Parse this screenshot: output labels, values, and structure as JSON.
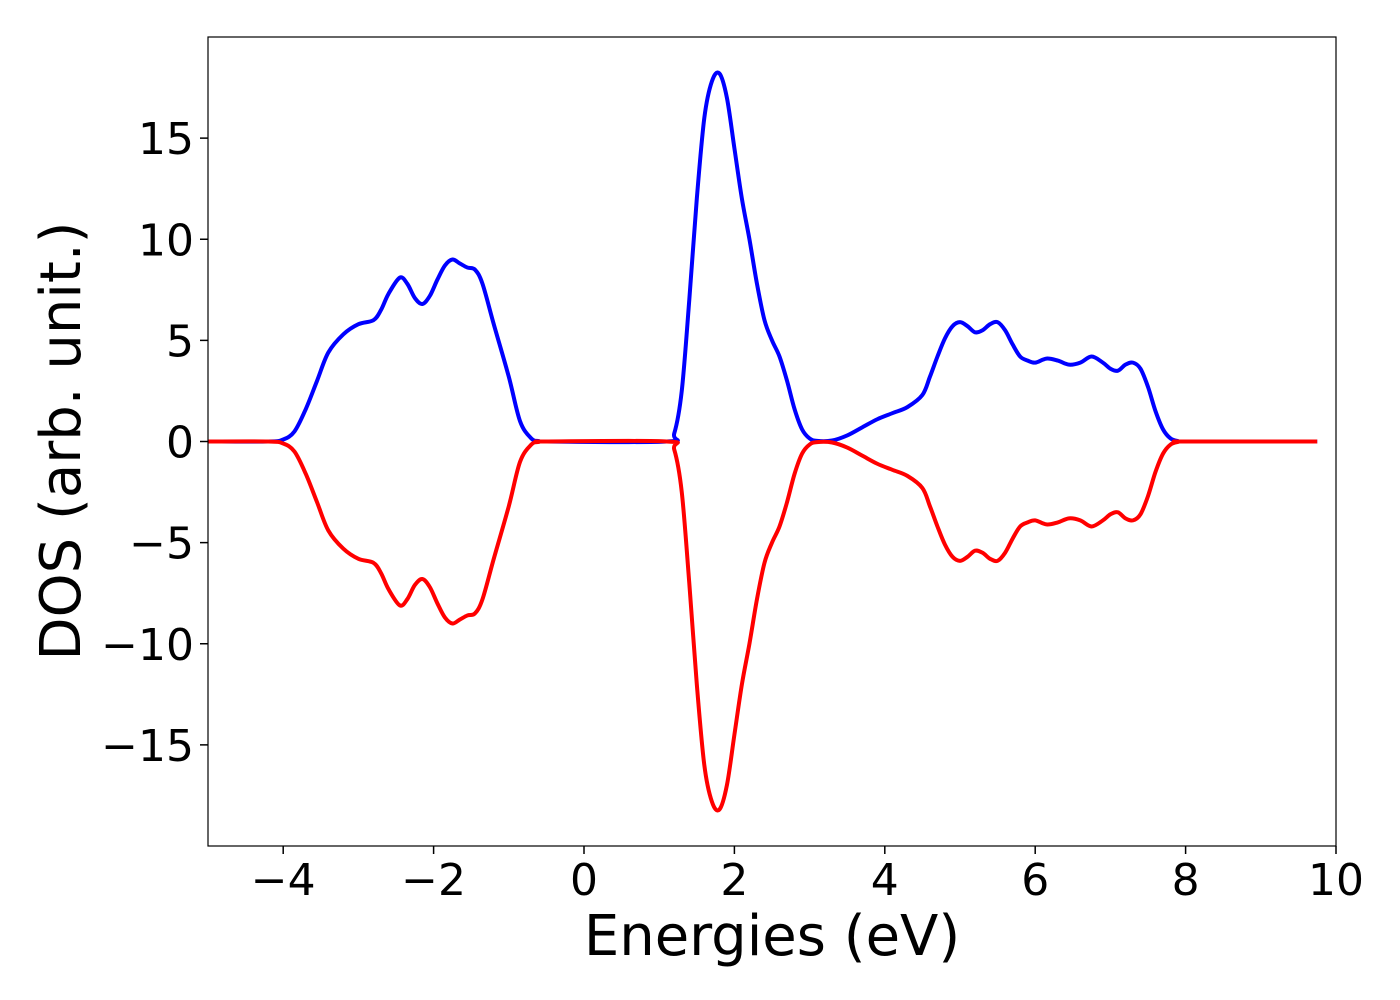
{
  "chart_data": {
    "type": "line",
    "title": "",
    "xlabel": "Energies (eV)",
    "ylabel": "DOS (arb. unit.)",
    "xlim": [
      -5,
      10
    ],
    "ylim": [
      -20,
      20
    ],
    "xticks": [
      -4,
      -2,
      0,
      2,
      4,
      6,
      8,
      10
    ],
    "xtick_labels": [
      "−4",
      "−2",
      "0",
      "2",
      "4",
      "6",
      "8",
      "10"
    ],
    "yticks": [
      -15,
      -10,
      -5,
      0,
      5,
      10,
      15
    ],
    "ytick_labels": [
      "−15",
      "−10",
      "−5",
      "0",
      "5",
      "10",
      "15"
    ],
    "grid": false,
    "legend": "none",
    "series": [
      {
        "color": "#0000ff",
        "x": [
          -5,
          -4.2,
          -4.0,
          -3.85,
          -3.7,
          -3.55,
          -3.4,
          -3.2,
          -3.0,
          -2.8,
          -2.7,
          -2.6,
          -2.45,
          -2.35,
          -2.25,
          -2.15,
          -2.05,
          -1.95,
          -1.85,
          -1.75,
          -1.65,
          -1.55,
          -1.45,
          -1.35,
          -1.2,
          -1.0,
          -0.85,
          -0.7,
          -0.6,
          -0.5,
          1.1,
          1.2,
          1.3,
          1.4,
          1.5,
          1.6,
          1.7,
          1.8,
          1.9,
          2.0,
          2.1,
          2.2,
          2.3,
          2.4,
          2.5,
          2.6,
          2.7,
          2.8,
          2.9,
          3.0,
          3.1,
          3.3,
          3.5,
          3.7,
          3.9,
          4.1,
          4.3,
          4.5,
          4.6,
          4.7,
          4.8,
          4.9,
          5.0,
          5.1,
          5.2,
          5.3,
          5.4,
          5.5,
          5.6,
          5.7,
          5.8,
          5.9,
          6.0,
          6.15,
          6.3,
          6.45,
          6.6,
          6.75,
          6.9,
          7.0,
          7.1,
          7.2,
          7.3,
          7.4,
          7.5,
          7.6,
          7.7,
          7.8,
          7.9,
          8.0,
          9.75
        ],
        "y": [
          0,
          0,
          0.1,
          0.5,
          1.6,
          3.0,
          4.4,
          5.3,
          5.8,
          6.0,
          6.5,
          7.3,
          8.1,
          7.8,
          7.1,
          6.8,
          7.2,
          8.0,
          8.7,
          9.0,
          8.8,
          8.6,
          8.5,
          7.8,
          5.8,
          3.2,
          1.0,
          0.15,
          0.02,
          0,
          0,
          0.4,
          2.5,
          7.0,
          12.0,
          16.0,
          17.8,
          18.2,
          17.0,
          14.5,
          12.0,
          10.0,
          7.8,
          6.0,
          5.0,
          4.2,
          3.0,
          1.6,
          0.6,
          0.15,
          0.03,
          0.05,
          0.3,
          0.7,
          1.1,
          1.4,
          1.7,
          2.3,
          3.2,
          4.2,
          5.1,
          5.7,
          5.9,
          5.7,
          5.4,
          5.5,
          5.8,
          5.9,
          5.5,
          4.8,
          4.2,
          4.0,
          3.9,
          4.1,
          4.0,
          3.8,
          3.9,
          4.2,
          3.9,
          3.6,
          3.5,
          3.8,
          3.9,
          3.6,
          2.7,
          1.5,
          0.6,
          0.15,
          0.02,
          0,
          0
        ]
      },
      {
        "color": "#ff0000",
        "x": [
          -5,
          -4.2,
          -4.0,
          -3.85,
          -3.7,
          -3.55,
          -3.4,
          -3.2,
          -3.0,
          -2.8,
          -2.7,
          -2.6,
          -2.45,
          -2.35,
          -2.25,
          -2.15,
          -2.05,
          -1.95,
          -1.85,
          -1.75,
          -1.65,
          -1.55,
          -1.45,
          -1.35,
          -1.2,
          -1.0,
          -0.85,
          -0.7,
          -0.6,
          -0.5,
          1.1,
          1.2,
          1.3,
          1.4,
          1.5,
          1.6,
          1.7,
          1.8,
          1.9,
          2.0,
          2.1,
          2.2,
          2.3,
          2.4,
          2.5,
          2.6,
          2.7,
          2.8,
          2.9,
          3.0,
          3.1,
          3.3,
          3.5,
          3.7,
          3.9,
          4.1,
          4.3,
          4.5,
          4.6,
          4.7,
          4.8,
          4.9,
          5.0,
          5.1,
          5.2,
          5.3,
          5.4,
          5.5,
          5.6,
          5.7,
          5.8,
          5.9,
          6.0,
          6.15,
          6.3,
          6.45,
          6.6,
          6.75,
          6.9,
          7.0,
          7.1,
          7.2,
          7.3,
          7.4,
          7.5,
          7.6,
          7.7,
          7.8,
          7.9,
          8.0,
          9.75
        ],
        "y": [
          0,
          0,
          -0.1,
          -0.5,
          -1.6,
          -3.0,
          -4.4,
          -5.3,
          -5.8,
          -6.0,
          -6.5,
          -7.3,
          -8.1,
          -7.8,
          -7.1,
          -6.8,
          -7.2,
          -8.0,
          -8.7,
          -9.0,
          -8.8,
          -8.6,
          -8.5,
          -7.8,
          -5.8,
          -3.2,
          -1.0,
          -0.15,
          -0.02,
          0,
          0,
          -0.4,
          -2.5,
          -7.0,
          -12.0,
          -16.0,
          -17.8,
          -18.2,
          -17.0,
          -14.5,
          -12.0,
          -10.0,
          -7.8,
          -6.0,
          -5.0,
          -4.2,
          -3.0,
          -1.6,
          -0.6,
          -0.15,
          -0.03,
          -0.05,
          -0.3,
          -0.7,
          -1.1,
          -1.4,
          -1.7,
          -2.3,
          -3.2,
          -4.2,
          -5.1,
          -5.7,
          -5.9,
          -5.7,
          -5.4,
          -5.5,
          -5.8,
          -5.9,
          -5.5,
          -4.8,
          -4.2,
          -4.0,
          -3.9,
          -4.1,
          -4.0,
          -3.8,
          -3.9,
          -4.2,
          -3.9,
          -3.6,
          -3.5,
          -3.8,
          -3.9,
          -3.6,
          -2.7,
          -1.5,
          -0.6,
          -0.15,
          -0.02,
          0,
          0
        ]
      }
    ]
  }
}
